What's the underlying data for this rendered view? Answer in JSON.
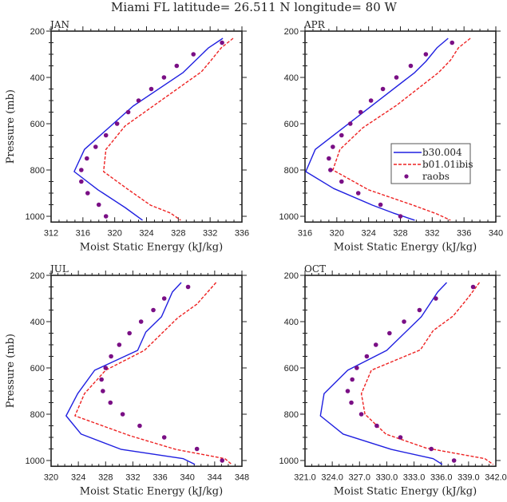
{
  "title": "Miami FL  latitude= 26.511 N longitude= 80 W",
  "chart_data": [
    {
      "type": "line",
      "panel_label": "JAN",
      "xlabel": "Moist Static Energy (kJ/kg)",
      "ylabel": "Pressure (mb)",
      "xlim": [
        312,
        336
      ],
      "xticks": [
        312,
        316,
        320,
        324,
        328,
        332,
        336
      ],
      "xtick_labels": [
        "312",
        "316",
        "320",
        "324",
        "328",
        "332",
        "336"
      ],
      "ylim": [
        200,
        1025
      ],
      "yticks": [
        200,
        400,
        600,
        800,
        1000
      ],
      "ytick_labels": [
        "200",
        "400",
        "600",
        "800",
        "1000"
      ],
      "y_inverted": true,
      "show_ylabel": true,
      "legend": null,
      "series": [
        {
          "name": "b30.004",
          "style": "solid",
          "color": "#1f1fe0",
          "x": [
            333.6,
            331.8,
            328.6,
            322.3,
            316.2,
            314.9,
            317.9,
            321.3,
            323.5
          ],
          "y": [
            231,
            272,
            379,
            524,
            711,
            807,
            886,
            962,
            1017
          ]
        },
        {
          "name": "b01.01ibis",
          "style": "dashed",
          "color": "#ee2222",
          "x": [
            334.9,
            333.4,
            332.0,
            330.9,
            321.3,
            318.9,
            318.6,
            321.6,
            324.5,
            327.0,
            328.3
          ],
          "y": [
            231,
            272,
            331,
            376,
            610,
            711,
            807,
            882,
            952,
            986,
            1017
          ]
        },
        {
          "name": "raobs",
          "style": "markers",
          "color": "#7a0f85",
          "x": [
            333.5,
            329.9,
            327.8,
            326.2,
            324.6,
            323.0,
            321.7,
            320.3,
            318.9,
            317.6,
            316.5,
            315.8,
            315.8,
            316.6,
            318.0,
            318.9
          ],
          "y": [
            250,
            300,
            350,
            400,
            450,
            500,
            550,
            600,
            650,
            700,
            750,
            800,
            850,
            900,
            950,
            1000
          ]
        }
      ]
    },
    {
      "type": "line",
      "panel_label": "APR",
      "xlabel": "Moist Static Energy (kJ/kg)",
      "ylabel": "",
      "xlim": [
        316,
        340
      ],
      "xticks": [
        316,
        320,
        324,
        328,
        332,
        336,
        340
      ],
      "xtick_labels": [
        "316",
        "320",
        "324",
        "328",
        "332",
        "336",
        "340"
      ],
      "ylim": [
        200,
        1025
      ],
      "yticks": [
        200,
        400,
        600,
        800,
        1000
      ],
      "ytick_labels": [
        "200",
        "400",
        "600",
        "800",
        "1000"
      ],
      "y_inverted": true,
      "show_ylabel": false,
      "legend": {
        "placement": "center-right",
        "entries": [
          "b30.004",
          "b01.01ibis",
          "raobs"
        ]
      },
      "series": [
        {
          "name": "b30.004",
          "style": "solid",
          "color": "#1f1fe0",
          "x": [
            334.0,
            332.6,
            331.2,
            329.8,
            317.3,
            316.1,
            319.6,
            324.5,
            327.1,
            329.8
          ],
          "y": [
            231,
            272,
            331,
            379,
            711,
            807,
            880,
            952,
            986,
            1017
          ]
        },
        {
          "name": "b01.01ibis",
          "style": "dashed",
          "color": "#ee2222",
          "x": [
            336.8,
            335.3,
            334.3,
            332.8,
            327.5,
            323.3,
            320.4,
            319.5,
            324.0,
            329.6,
            332.6,
            334.3
          ],
          "y": [
            231,
            272,
            326,
            379,
            521,
            617,
            711,
            800,
            886,
            952,
            990,
            1017
          ]
        },
        {
          "name": "raobs",
          "style": "markers",
          "color": "#7a0f85",
          "x": [
            334.5,
            331.2,
            329.3,
            327.5,
            325.8,
            324.3,
            323.0,
            321.7,
            320.6,
            319.5,
            319.0,
            319.2,
            320.6,
            322.7,
            325.5,
            328.0
          ],
          "y": [
            250,
            300,
            350,
            400,
            450,
            500,
            550,
            600,
            650,
            700,
            750,
            800,
            850,
            900,
            950,
            1000
          ]
        }
      ]
    },
    {
      "type": "line",
      "panel_label": "JUL",
      "xlabel": "Moist Static Energy (kJ/kg)",
      "ylabel": "Pressure (mb)",
      "xlim": [
        320,
        348
      ],
      "xticks": [
        320,
        324,
        328,
        332,
        336,
        340,
        344,
        348
      ],
      "xtick_labels": [
        "320",
        "324",
        "328",
        "332",
        "336",
        "340",
        "344",
        "348"
      ],
      "ylim": [
        200,
        1025
      ],
      "yticks": [
        200,
        400,
        600,
        800,
        1000
      ],
      "ytick_labels": [
        "200",
        "400",
        "600",
        "800",
        "1000"
      ],
      "y_inverted": true,
      "show_ylabel": true,
      "legend": null,
      "series": [
        {
          "name": "b30.004",
          "style": "solid",
          "color": "#1f1fe0",
          "x": [
            339.1,
            337.8,
            336.2,
            333.9,
            332.7,
            326.4,
            323.9,
            322.2,
            324.4,
            330.3,
            339.4,
            341.1
          ],
          "y": [
            231,
            272,
            379,
            445,
            524,
            610,
            711,
            807,
            886,
            952,
            992,
            1017
          ]
        },
        {
          "name": "b01.01ibis",
          "style": "dashed",
          "color": "#ee2222",
          "x": [
            344.2,
            341.4,
            338.6,
            333.7,
            328.0,
            324.9,
            323.5,
            331.6,
            338.3,
            345.5,
            346.5
          ],
          "y": [
            231,
            324,
            383,
            524,
            610,
            711,
            807,
            893,
            952,
            992,
            1017
          ]
        },
        {
          "name": "raobs",
          "style": "markers",
          "color": "#7a0f85",
          "x": [
            340.1,
            336.6,
            335.0,
            333.2,
            331.5,
            330.0,
            328.8,
            328.0,
            327.4,
            327.6,
            328.7,
            330.5,
            333.0,
            336.6,
            341.4,
            345.1
          ],
          "y": [
            250,
            300,
            350,
            400,
            450,
            500,
            550,
            600,
            650,
            700,
            750,
            800,
            850,
            900,
            950,
            1000
          ]
        }
      ]
    },
    {
      "type": "line",
      "panel_label": "OCT",
      "xlabel": "Moist Static Energy (kJ/kg)",
      "ylabel": "",
      "xlim": [
        321,
        342
      ],
      "xticks": [
        321,
        324,
        327,
        330,
        333,
        336,
        339,
        342
      ],
      "xtick_labels": [
        "321.0",
        "324.0",
        "327.0",
        "330.0",
        "333.0",
        "336.0",
        "339.0",
        "342.0"
      ],
      "ylim": [
        200,
        1025
      ],
      "yticks": [
        200,
        400,
        600,
        800,
        1000
      ],
      "ytick_labels": [
        "200",
        "400",
        "600",
        "800",
        "1000"
      ],
      "y_inverted": true,
      "show_ylabel": false,
      "legend": null,
      "series": [
        {
          "name": "b30.004",
          "style": "solid",
          "color": "#1f1fe0",
          "x": [
            336.6,
            335.6,
            333.8,
            330.0,
            325.7,
            323.1,
            322.7,
            325.2,
            330.5,
            335.1,
            336.1
          ],
          "y": [
            231,
            272,
            379,
            524,
            610,
            711,
            807,
            886,
            952,
            992,
            1017
          ]
        },
        {
          "name": "b01.01ibis",
          "style": "dashed",
          "color": "#ee2222",
          "x": [
            340.2,
            339.0,
            337.3,
            335.1,
            333.7,
            328.3,
            327.2,
            327.6,
            329.9,
            334.3,
            340.8,
            341.7
          ],
          "y": [
            231,
            294,
            376,
            439,
            522,
            610,
            711,
            800,
            886,
            946,
            992,
            1017
          ]
        },
        {
          "name": "raobs",
          "style": "markers",
          "color": "#7a0f85",
          "x": [
            339.5,
            335.4,
            333.6,
            331.9,
            330.3,
            328.8,
            327.8,
            326.7,
            326.2,
            325.7,
            326.1,
            327.2,
            328.9,
            331.5,
            334.9,
            337.4
          ],
          "y": [
            250,
            300,
            350,
            400,
            450,
            500,
            550,
            600,
            650,
            700,
            750,
            800,
            850,
            900,
            950,
            1000
          ]
        }
      ]
    }
  ]
}
